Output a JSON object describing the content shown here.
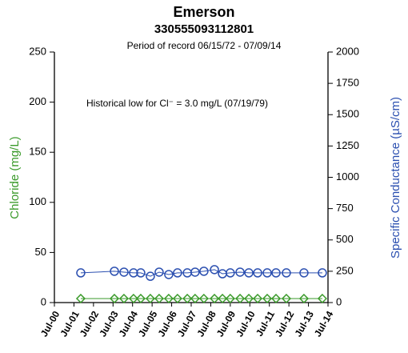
{
  "chart_data": {
    "type": "line",
    "title": "Emerson",
    "subtitle": "330555093112801",
    "period": "Period of record 06/15/72 - 07/09/14",
    "annotation": "Historical low for Cl⁻ = 3.0 mg/L (07/19/79)",
    "ylabel": "Chloride (mg/L)",
    "y2label": "Specific Conductance (µS/cm)",
    "x": [
      2001.85,
      2003.57,
      2004.06,
      2004.55,
      2004.92,
      2005.41,
      2005.86,
      2006.35,
      2006.8,
      2007.3,
      2007.7,
      2008.15,
      2008.69,
      2009.1,
      2009.5,
      2010.0,
      2010.45,
      2010.9,
      2011.39,
      2011.84,
      2012.37,
      2013.27,
      2014.21
    ],
    "series": [
      {
        "name": "Chloride",
        "color": "#3a9a2a",
        "marker": "diamond",
        "axis": "y",
        "values": [
          4,
          4,
          4,
          4,
          4,
          4,
          4,
          4,
          4,
          4,
          4,
          4,
          4,
          4,
          4,
          4,
          4,
          4,
          4,
          4,
          4,
          4,
          4
        ]
      },
      {
        "name": "Specific Conductance",
        "color": "#2b4fb0",
        "marker": "circle",
        "axis": "y2",
        "values": [
          237,
          250,
          243,
          237,
          237,
          210,
          243,
          224,
          237,
          237,
          243,
          250,
          263,
          230,
          237,
          243,
          237,
          237,
          237,
          237,
          237,
          237,
          237
        ]
      }
    ],
    "xlim": [
      2000.5,
      2014.5
    ],
    "xticks": [
      {
        "value": 2000.5,
        "label": "Jul-00"
      },
      {
        "value": 2001.5,
        "label": "Jul-01"
      },
      {
        "value": 2002.5,
        "label": "Jul-02"
      },
      {
        "value": 2003.5,
        "label": "Jul-03"
      },
      {
        "value": 2004.5,
        "label": "Jul-04"
      },
      {
        "value": 2005.5,
        "label": "Jul-05"
      },
      {
        "value": 2006.5,
        "label": "Jul-06"
      },
      {
        "value": 2007.5,
        "label": "Jul-07"
      },
      {
        "value": 2008.5,
        "label": "Jul-08"
      },
      {
        "value": 2009.5,
        "label": "Jul-09"
      },
      {
        "value": 2010.5,
        "label": "Jul-10"
      },
      {
        "value": 2011.5,
        "label": "Jul-11"
      },
      {
        "value": 2012.5,
        "label": "Jul-12"
      },
      {
        "value": 2013.5,
        "label": "Jul-13"
      },
      {
        "value": 2014.5,
        "label": "Jul-14"
      }
    ],
    "ylim": [
      0,
      250
    ],
    "yticks": [
      0,
      50,
      100,
      150,
      200,
      250
    ],
    "y2lim": [
      0,
      2000
    ],
    "y2ticks": [
      0,
      250,
      500,
      750,
      1000,
      1250,
      1500,
      1750,
      2000
    ],
    "grid": false
  }
}
